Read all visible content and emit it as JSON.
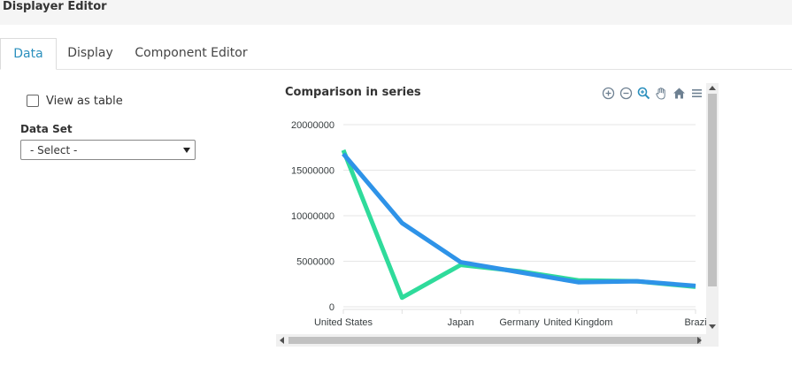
{
  "window": {
    "title": "Displayer Editor"
  },
  "tabs": [
    {
      "label": "Data",
      "active": true
    },
    {
      "label": "Display",
      "active": false
    },
    {
      "label": "Component Editor",
      "active": false
    }
  ],
  "data_panel": {
    "view_as_table_label": "View as table",
    "view_as_table_checked": false,
    "data_set_label": "Data Set",
    "data_set_selected": "- Select -"
  },
  "chart_toolbar": [
    "zoom-in-icon",
    "zoom-out-icon",
    "zoom-selection-icon",
    "pan-hand-icon",
    "home-icon",
    "menu-icon"
  ],
  "colors": {
    "accent": "#2a8fbd",
    "series1": "#2e93e8",
    "series2": "#2fdb9b"
  },
  "chart_data": {
    "type": "line",
    "title": "Comparison in series",
    "categories": [
      "United States",
      "",
      "Japan",
      "Germany",
      "United Kingdom",
      "",
      "Brazi"
    ],
    "y_ticks": [
      "20000000",
      "15000000",
      "10000000",
      "5000000",
      "0"
    ],
    "ylim": [
      0,
      20000000
    ],
    "grid": true,
    "series": [
      {
        "values": [
          16800000,
          9200000,
          4900000,
          3800000,
          2700000,
          2800000,
          2300000
        ]
      },
      {
        "values": [
          17200000,
          1000000,
          4600000,
          3900000,
          2900000,
          2800000,
          2200000
        ]
      }
    ]
  }
}
